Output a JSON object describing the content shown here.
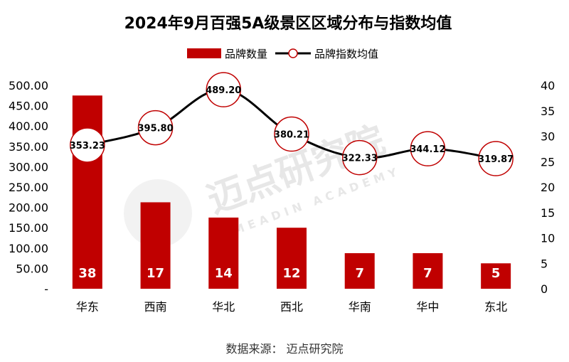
{
  "chart_data": {
    "type": "bar",
    "title": "2024年9月百强5A级景区区域分布与指数均值",
    "categories": [
      "华东",
      "西南",
      "华北",
      "西北",
      "华南",
      "华中",
      "东北"
    ],
    "series": [
      {
        "name": "品牌数量",
        "type": "bar",
        "axis": "right",
        "values": [
          38,
          17,
          14,
          12,
          7,
          7,
          5
        ]
      },
      {
        "name": "品牌指数均值",
        "type": "line",
        "axis": "left",
        "values": [
          353.23,
          395.8,
          489.2,
          380.21,
          322.33,
          344.12,
          319.87
        ]
      }
    ],
    "value_labels": {
      "bars": [
        "38",
        "17",
        "14",
        "12",
        "7",
        "7",
        "5"
      ],
      "line": [
        "353.23",
        "395.80",
        "489.20",
        "380.21",
        "322.33",
        "344.12",
        "319.87"
      ]
    },
    "left_axis": {
      "ylim": [
        0,
        500
      ],
      "ticks": [
        "-",
        "50.00",
        "100.00",
        "150.00",
        "200.00",
        "250.00",
        "300.00",
        "350.00",
        "400.00",
        "450.00",
        "500.00"
      ]
    },
    "right_axis": {
      "ylim": [
        0,
        40
      ],
      "ticks": [
        "0",
        "5",
        "10",
        "15",
        "20",
        "25",
        "30",
        "35",
        "40"
      ]
    },
    "legend": {
      "position": "top-center",
      "entries": [
        "品牌数量",
        "品牌指数均值"
      ]
    },
    "colors": {
      "bar": "#c00000",
      "line": "#000000",
      "marker_edge": "#c00000",
      "marker_fill": "#ffffff"
    }
  },
  "watermark": {
    "text": "迈点研究院",
    "sub": "MEADIN ACADEMY"
  },
  "source": "数据来源：  迈点研究院"
}
